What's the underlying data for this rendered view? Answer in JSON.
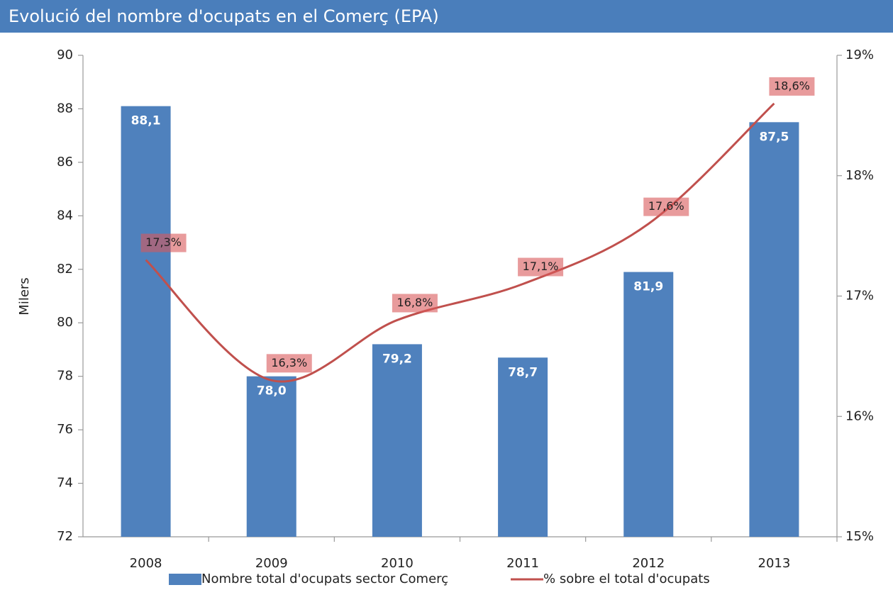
{
  "chart_data": {
    "type": "combo",
    "title": "Evolució del nombre d'ocupats en el Comerç (EPA)",
    "y_label": "Milers",
    "categories": [
      "2008",
      "2009",
      "2010",
      "2011",
      "2012",
      "2013"
    ],
    "series": [
      {
        "name": "Nombre total d'ocupats sector Comerç",
        "type": "bar",
        "color": "#4f81bd",
        "values": [
          88.1,
          78.0,
          79.2,
          78.7,
          81.9,
          87.5
        ],
        "value_labels": [
          "88,1",
          "78,0",
          "79,2",
          "78,7",
          "81,9",
          "87,5"
        ]
      },
      {
        "name": "% sobre el total d'ocupats",
        "type": "line",
        "axis": "y2",
        "color": "#c0504d",
        "values": [
          17.3,
          16.3,
          16.8,
          17.1,
          17.6,
          18.6
        ],
        "value_labels": [
          "17,3%",
          "16,3%",
          "16,8%",
          "17,1%",
          "17,6%",
          "18,6%"
        ]
      }
    ],
    "ylim": [
      72,
      90
    ],
    "yticks": [
      72,
      74,
      76,
      78,
      80,
      82,
      84,
      86,
      88,
      90
    ],
    "y2lim": [
      15,
      19
    ],
    "y2ticks": [
      {
        "value": 15,
        "label": "15%"
      },
      {
        "value": 16,
        "label": "16%"
      },
      {
        "value": 17,
        "label": "17%"
      },
      {
        "value": 18,
        "label": "18%"
      },
      {
        "value": 19,
        "label": "19%"
      }
    ],
    "legend": "bottom"
  }
}
